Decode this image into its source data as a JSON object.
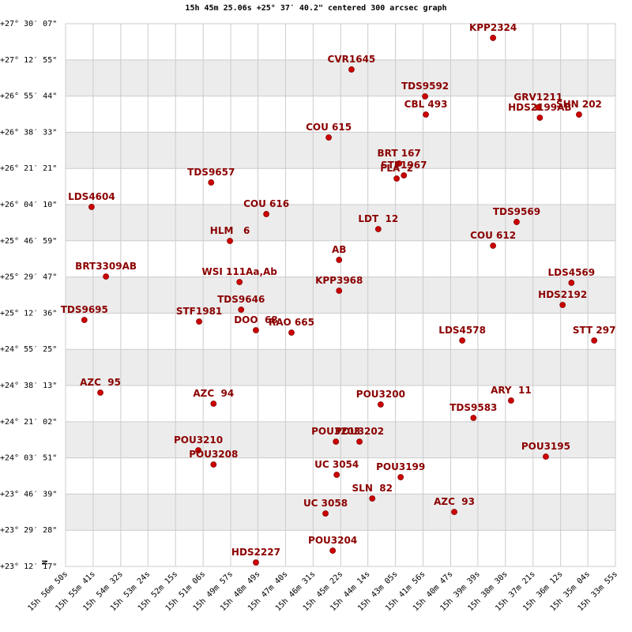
{
  "chart_data": {
    "type": "scatter",
    "title": "15h 45m 25.06s +25° 37′ 40.2\" centered 300 arcsec graph",
    "compass": "N",
    "color": "#cc0000",
    "label_color": "#8b0000",
    "labels": [
      "KPP2324",
      "CVR1645",
      "TDS9592",
      "CBL 493",
      "GRV1211",
      "HDS2199AB",
      "SHN 202",
      "COU 615",
      "BRT 167",
      "STF1967",
      "FLA  2",
      "TDS9657",
      "LDS4604",
      "COU 616",
      "LDT  12",
      "TDS9569",
      "HLM   6",
      "COU 612",
      "AB",
      "BRT3309AB",
      "WSI 111Aa,Ab",
      "LDS4569",
      "KPP3968",
      "TDS9646",
      "HDS2192",
      "TDS9695",
      "STF1981",
      "DOO  68",
      "RAO 665",
      "LDS4578",
      "STT 297",
      "AZC  95",
      "AZC  94",
      "POU3200",
      "ARY  11",
      "TDS9583",
      "POU3203",
      "POU3202",
      "POU3210",
      "POU3208",
      "POU3195",
      "UC 3054",
      "POU3199",
      "SLN  82",
      "AZC  93",
      "UC 3058",
      "POU3204",
      "HDS2227"
    ],
    "x": [
      56341,
      56695,
      56511,
      56509,
      56228,
      56224,
      56126,
      56752,
      56576,
      56564,
      56582,
      57046,
      57345,
      56908,
      56628,
      56282,
      56999,
      56341,
      56726,
      57309,
      56975,
      56145,
      56726,
      56971,
      56167,
      57363,
      57076,
      56934,
      56845,
      56418,
      56088,
      57323,
      57040,
      56622,
      56296,
      56390,
      56734,
      56675,
      57078,
      57040,
      56209,
      56732,
      56572,
      56643,
      56438,
      56760,
      56742,
      56934
    ],
    "values": [
      98603,
      97702,
      96936,
      96418,
      96621,
      96328,
      96418,
      95765,
      95022,
      94684,
      94594,
      94482,
      93784,
      93581,
      93153,
      93356,
      92815,
      92680,
      92275,
      91802,
      91644,
      91622,
      91396,
      90856,
      90991,
      90563,
      90518,
      90270,
      90203,
      89978,
      89978,
      88491,
      88176,
      88154,
      88266,
      87771,
      87095,
      87095,
      86847,
      86442,
      86667,
      86149,
      86082,
      85474,
      85091,
      85046,
      83987,
      83650
    ],
    "xlim": [
      57410,
      56035
    ],
    "xticks": [
      {
        "value": 57410,
        "label": "15h 56m 50s"
      },
      {
        "value": 57341,
        "label": "15h 55m 41s"
      },
      {
        "value": 57272,
        "label": "15h 54m 32s"
      },
      {
        "value": 57204,
        "label": "15h 53m 24s"
      },
      {
        "value": 57135,
        "label": "15h 52m 15s"
      },
      {
        "value": 57066,
        "label": "15h 51m 06s"
      },
      {
        "value": 56997,
        "label": "15h 49m 57s"
      },
      {
        "value": 56929,
        "label": "15h 48m 49s"
      },
      {
        "value": 56860,
        "label": "15h 47m 40s"
      },
      {
        "value": 56791,
        "label": "15h 46m 31s"
      },
      {
        "value": 56722,
        "label": "15h 45m 22s"
      },
      {
        "value": 56654,
        "label": "15h 44m 14s"
      },
      {
        "value": 56585,
        "label": "15h 43m 05s"
      },
      {
        "value": 56516,
        "label": "15h 41m 56s"
      },
      {
        "value": 56447,
        "label": "15h 40m 47s"
      },
      {
        "value": 56379,
        "label": "15h 39m 39s"
      },
      {
        "value": 56310,
        "label": "15h 38m 30s"
      },
      {
        "value": 56241,
        "label": "15h 37m 21s"
      },
      {
        "value": 56172,
        "label": "15h 36m 12s"
      },
      {
        "value": 56104,
        "label": "15h 35m 04s"
      },
      {
        "value": 56035,
        "label": "15h 33m 55s"
      }
    ],
    "ylim": [
      83537,
      99007
    ],
    "yticks": [
      {
        "value": 83537,
        "label": "+23° 12′ 17\""
      },
      {
        "value": 84568,
        "label": "+23° 29′ 28\""
      },
      {
        "value": 85599,
        "label": "+23° 46′ 39\""
      },
      {
        "value": 86631,
        "label": "+24° 03′ 51\""
      },
      {
        "value": 87662,
        "label": "+24° 21′ 02\""
      },
      {
        "value": 88693,
        "label": "+24° 38′ 13\""
      },
      {
        "value": 89725,
        "label": "+24° 55′ 25\""
      },
      {
        "value": 90756,
        "label": "+25° 12′ 36\""
      },
      {
        "value": 91787,
        "label": "+25° 29′ 47\""
      },
      {
        "value": 92819,
        "label": "+25° 46′ 59\""
      },
      {
        "value": 93850,
        "label": "+26° 04′ 10\""
      },
      {
        "value": 94881,
        "label": "+26° 21′ 21\""
      },
      {
        "value": 95913,
        "label": "+26° 38′ 33\""
      },
      {
        "value": 96944,
        "label": "+26° 55′ 44\""
      },
      {
        "value": 97975,
        "label": "+27° 12′ 55\""
      },
      {
        "value": 99007,
        "label": "+27° 30′ 07\""
      }
    ],
    "grid": true
  }
}
